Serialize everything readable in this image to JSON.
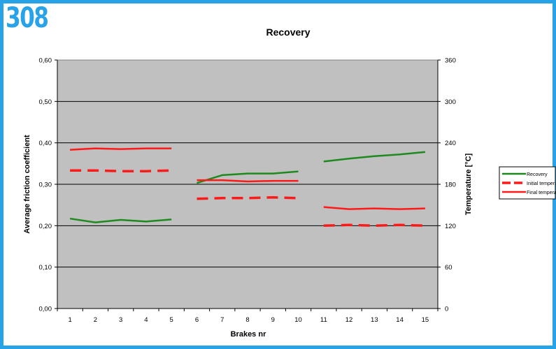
{
  "badge": "308",
  "chart_data": {
    "type": "line",
    "title": "Recovery",
    "xlabel": "Brakes nr",
    "ylabel": "Average friction coefficient",
    "y2label": "Temperature [°C]",
    "categories": [
      "1",
      "2",
      "3",
      "4",
      "5",
      "6",
      "7",
      "8",
      "9",
      "10",
      "11",
      "12",
      "13",
      "14",
      "15"
    ],
    "ylim": [
      0,
      0.6
    ],
    "y2lim": [
      0,
      360
    ],
    "yticks": [
      "0,00",
      "0,10",
      "0,20",
      "0,30",
      "0,40",
      "0,50",
      "0,60"
    ],
    "y2ticks": [
      "0",
      "60",
      "120",
      "180",
      "240",
      "300",
      "360"
    ],
    "grid": true,
    "legend": "right",
    "series": [
      {
        "name": "Recovery",
        "axis": "left",
        "color": "#1e8a1e",
        "dash": "solid",
        "values": [
          0.217,
          0.208,
          0.214,
          0.21,
          0.215,
          0.303,
          0.322,
          0.326,
          0.326,
          0.331,
          0.355,
          0.362,
          0.368,
          0.372,
          0.378
        ]
      },
      {
        "name": "Initial temperature",
        "axis": "right",
        "color": "#ff1a1a",
        "dash": "dashed",
        "values": [
          200,
          200,
          199,
          199,
          200,
          159,
          160,
          160,
          161,
          160,
          120,
          121,
          120,
          121,
          120
        ]
      },
      {
        "name": "Final temperature",
        "axis": "right",
        "color": "#ff1a1a",
        "dash": "solid",
        "values": [
          230,
          232,
          231,
          232,
          232,
          186,
          186,
          184,
          185,
          185,
          147,
          144,
          145,
          144,
          145
        ]
      }
    ],
    "segments": [
      [
        0,
        4
      ],
      [
        5,
        9
      ],
      [
        10,
        14
      ]
    ]
  }
}
